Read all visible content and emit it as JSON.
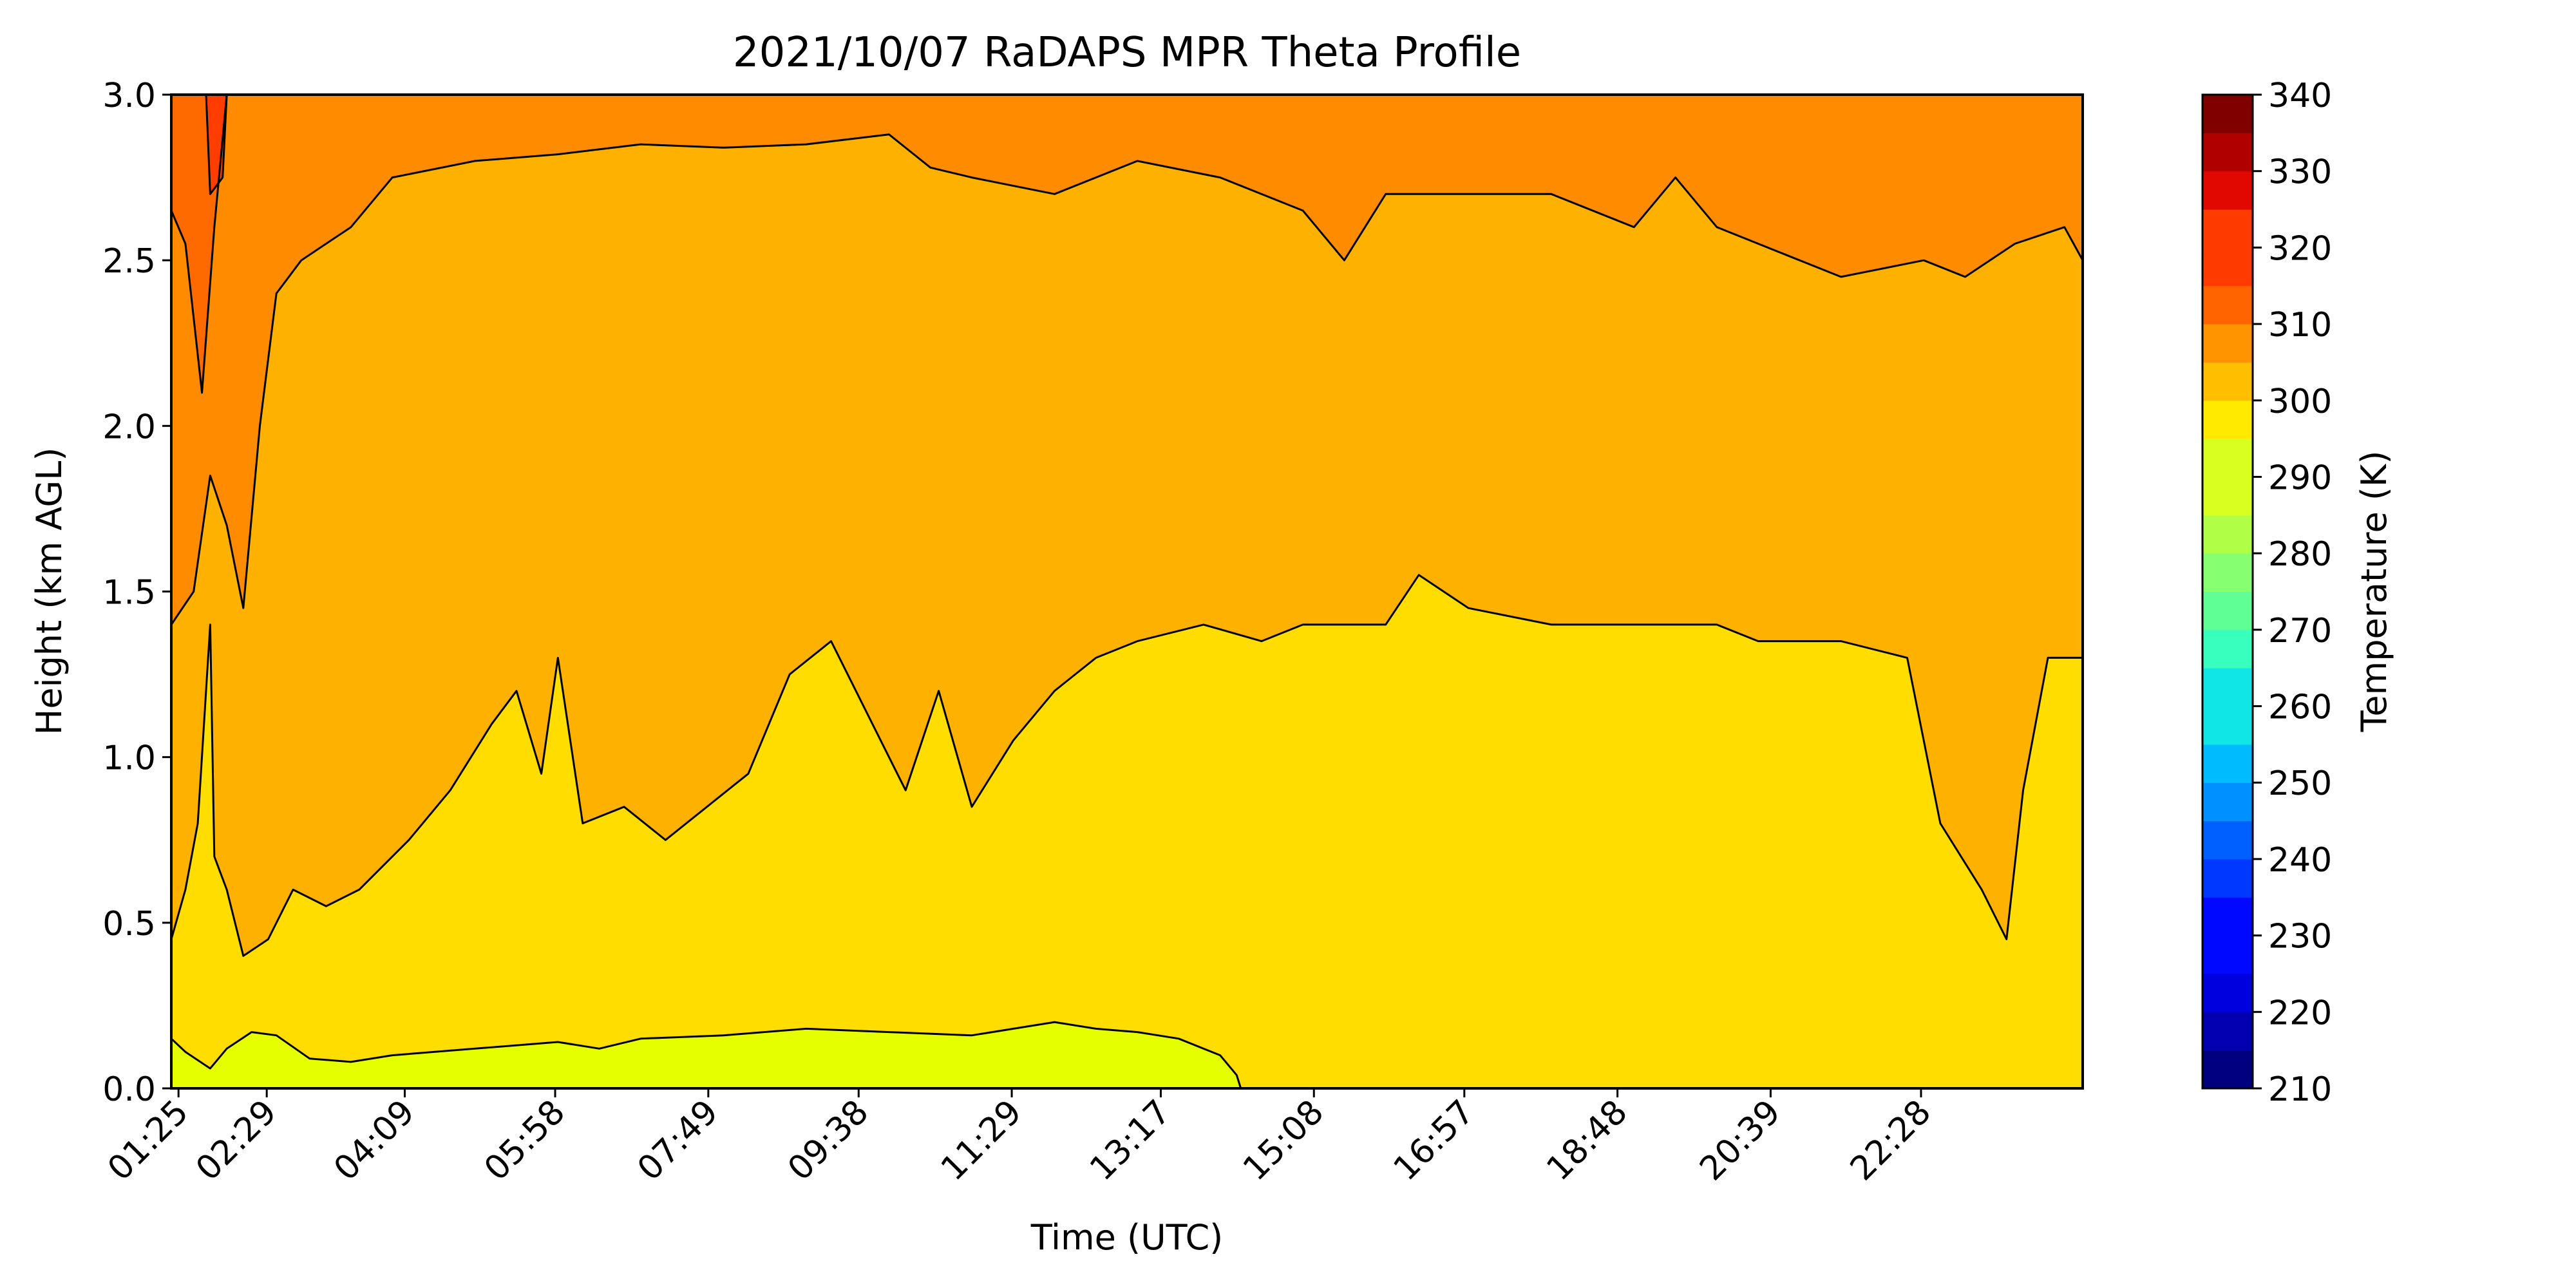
{
  "chart_data": {
    "type": "heatmap",
    "subtype": "filled-contour",
    "title": "2021/10/07 RaDAPS MPR Theta Profile",
    "xlabel": "Time (UTC)",
    "ylabel": "Height (km AGL)",
    "x_tick_labels": [
      "01:25",
      "02:29",
      "04:09",
      "05:58",
      "07:49",
      "09:38",
      "11:29",
      "13:17",
      "15:08",
      "16:57",
      "18:48",
      "20:39",
      "22:28"
    ],
    "x_tick_hours": [
      1.417,
      2.483,
      4.15,
      5.967,
      7.817,
      9.633,
      11.483,
      13.283,
      15.133,
      16.95,
      18.8,
      20.65,
      22.467
    ],
    "xlim_hours": [
      1.33,
      24.42
    ],
    "ylim": [
      0.0,
      3.0
    ],
    "y_ticks": [
      0.0,
      0.5,
      1.0,
      1.5,
      2.0,
      2.5,
      3.0
    ],
    "y_tick_labels": [
      "0.0",
      "0.5",
      "1.0",
      "1.5",
      "2.0",
      "2.5",
      "3.0"
    ],
    "colorbar": {
      "label": "Temperature (K)",
      "min": 210,
      "max": 340,
      "step": 5,
      "tick_values": [
        210,
        220,
        230,
        240,
        250,
        260,
        270,
        280,
        290,
        300,
        310,
        320,
        330,
        340
      ],
      "tick_labels": [
        "210",
        "220",
        "230",
        "240",
        "250",
        "260",
        "270",
        "280",
        "290",
        "300",
        "310",
        "320",
        "330",
        "340"
      ],
      "colormap": "jet",
      "colors": [
        "#000080",
        "#0000b0",
        "#0000de",
        "#0008ff",
        "#0038ff",
        "#0060ff",
        "#0090ff",
        "#00bcff",
        "#10e6e6",
        "#39ffbe",
        "#60ff96",
        "#86ff70",
        "#b0ff46",
        "#d8ff20",
        "#ffea00",
        "#ffbe00",
        "#ff9400",
        "#ff6400",
        "#ff3b00",
        "#e00800",
        "#b00000",
        "#800000"
      ]
    },
    "bands": [
      {
        "range_K": [
          290,
          295
        ],
        "color": "#e5ff00",
        "region": "surface layer, 0.0 to ~0.2 km, before ~14:00 UTC"
      },
      {
        "range_K": [
          295,
          300
        ],
        "color": "#ffdd00",
        "region": "lower boundary layer, up to ~0.5-1.4 km"
      },
      {
        "range_K": [
          300,
          305
        ],
        "color": "#ffb100",
        "region": "mid layer, up to ~2.4-2.9 km"
      },
      {
        "range_K": [
          305,
          310
        ],
        "color": "#ff8c00",
        "region": "upper layer above ~2.5 km"
      },
      {
        "range_K": [
          310,
          315
        ],
        "color": "#ff6a00",
        "region": "early hours near 01:25-02:29"
      },
      {
        "range_K": [
          315,
          320
        ],
        "color": "#ff3d00",
        "region": "small pocket near 01:30, above ~2.6 km"
      }
    ],
    "contour_lines": [
      {
        "level_K": 295,
        "height_km": [
          [
            1.33,
            0.15
          ],
          [
            1.5,
            0.11
          ],
          [
            1.8,
            0.06
          ],
          [
            2.0,
            0.12
          ],
          [
            2.3,
            0.17
          ],
          [
            2.6,
            0.16
          ],
          [
            3.0,
            0.09
          ],
          [
            3.5,
            0.08
          ],
          [
            4.0,
            0.1
          ],
          [
            5.0,
            0.12
          ],
          [
            6.0,
            0.14
          ],
          [
            6.5,
            0.12
          ],
          [
            7.0,
            0.15
          ],
          [
            8.0,
            0.16
          ],
          [
            9.0,
            0.18
          ],
          [
            10.0,
            0.17
          ],
          [
            11.0,
            0.16
          ],
          [
            12.0,
            0.2
          ],
          [
            12.5,
            0.18
          ],
          [
            13.0,
            0.17
          ],
          [
            13.5,
            0.15
          ],
          [
            14.0,
            0.1
          ],
          [
            14.2,
            0.04
          ],
          [
            14.25,
            0.0
          ]
        ]
      },
      {
        "level_K": 300,
        "height_km": [
          [
            1.33,
            0.45
          ],
          [
            1.5,
            0.6
          ],
          [
            1.65,
            0.8
          ],
          [
            1.8,
            1.4
          ],
          [
            1.85,
            0.7
          ],
          [
            2.0,
            0.6
          ],
          [
            2.2,
            0.4
          ],
          [
            2.5,
            0.45
          ],
          [
            2.8,
            0.6
          ],
          [
            3.2,
            0.55
          ],
          [
            3.6,
            0.6
          ],
          [
            4.2,
            0.75
          ],
          [
            4.7,
            0.9
          ],
          [
            5.2,
            1.1
          ],
          [
            5.5,
            1.2
          ],
          [
            5.8,
            0.95
          ],
          [
            6.0,
            1.3
          ],
          [
            6.3,
            0.8
          ],
          [
            6.8,
            0.85
          ],
          [
            7.3,
            0.75
          ],
          [
            7.8,
            0.85
          ],
          [
            8.3,
            0.95
          ],
          [
            8.8,
            1.25
          ],
          [
            9.3,
            1.35
          ],
          [
            9.8,
            1.1
          ],
          [
            10.2,
            0.9
          ],
          [
            10.6,
            1.2
          ],
          [
            11.0,
            0.85
          ],
          [
            11.5,
            1.05
          ],
          [
            12.0,
            1.2
          ],
          [
            12.5,
            1.3
          ],
          [
            13.0,
            1.35
          ],
          [
            13.8,
            1.4
          ],
          [
            14.5,
            1.35
          ],
          [
            15.0,
            1.4
          ],
          [
            16.0,
            1.4
          ],
          [
            16.4,
            1.55
          ],
          [
            17.0,
            1.45
          ],
          [
            18.0,
            1.4
          ],
          [
            19.0,
            1.4
          ],
          [
            20.0,
            1.4
          ],
          [
            20.5,
            1.35
          ],
          [
            21.5,
            1.35
          ],
          [
            22.3,
            1.3
          ],
          [
            22.7,
            0.8
          ],
          [
            23.2,
            0.6
          ],
          [
            23.5,
            0.45
          ],
          [
            23.7,
            0.9
          ],
          [
            24.0,
            1.3
          ],
          [
            24.42,
            1.3
          ]
        ]
      },
      {
        "level_K": 305,
        "height_km": [
          [
            1.33,
            1.4
          ],
          [
            1.6,
            1.5
          ],
          [
            1.8,
            1.85
          ],
          [
            2.0,
            1.7
          ],
          [
            2.2,
            1.45
          ],
          [
            2.4,
            2.0
          ],
          [
            2.6,
            2.4
          ],
          [
            2.9,
            2.5
          ],
          [
            3.5,
            2.6
          ],
          [
            4.0,
            2.75
          ],
          [
            5.0,
            2.8
          ],
          [
            6.0,
            2.82
          ],
          [
            7.0,
            2.85
          ],
          [
            8.0,
            2.84
          ],
          [
            9.0,
            2.85
          ],
          [
            10.0,
            2.88
          ],
          [
            10.5,
            2.78
          ],
          [
            11.0,
            2.75
          ],
          [
            12.0,
            2.7
          ],
          [
            13.0,
            2.8
          ],
          [
            14.0,
            2.75
          ],
          [
            15.0,
            2.65
          ],
          [
            15.5,
            2.5
          ],
          [
            16.0,
            2.7
          ],
          [
            17.0,
            2.7
          ],
          [
            18.0,
            2.7
          ],
          [
            19.0,
            2.6
          ],
          [
            19.5,
            2.75
          ],
          [
            20.0,
            2.6
          ],
          [
            21.0,
            2.5
          ],
          [
            21.5,
            2.45
          ],
          [
            22.5,
            2.5
          ],
          [
            23.0,
            2.45
          ],
          [
            23.6,
            2.55
          ],
          [
            24.2,
            2.6
          ],
          [
            24.42,
            2.5
          ]
        ]
      },
      {
        "level_K": 310,
        "height_km": [
          [
            1.33,
            2.65
          ],
          [
            1.5,
            2.55
          ],
          [
            1.7,
            2.1
          ],
          [
            1.85,
            2.6
          ],
          [
            2.0,
            3.0
          ]
        ]
      },
      {
        "level_K": 315,
        "height_km": [
          [
            1.75,
            3.0
          ],
          [
            1.8,
            2.7
          ],
          [
            1.95,
            2.75
          ],
          [
            2.0,
            3.0
          ]
        ]
      }
    ]
  }
}
